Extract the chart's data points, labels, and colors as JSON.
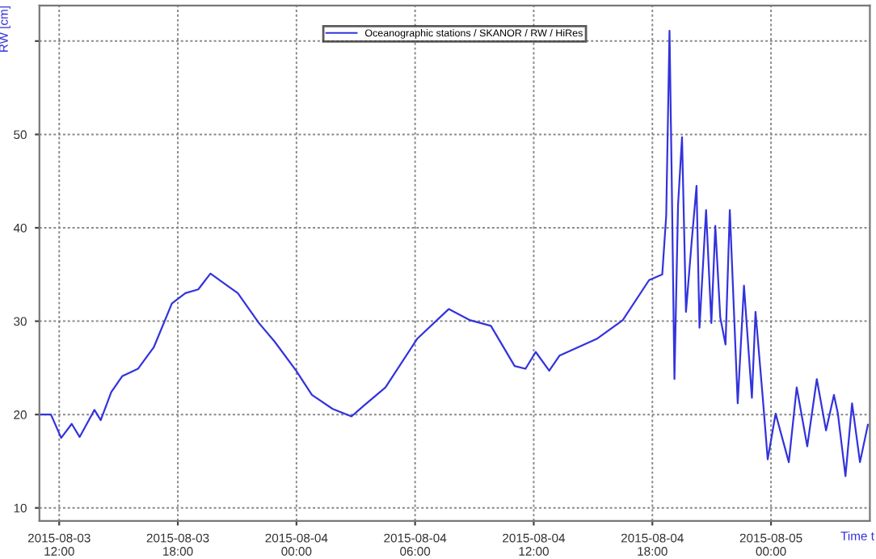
{
  "chart_data": {
    "type": "line",
    "ylabel": "RW [cm]",
    "xlabel": "Time t",
    "xlim": [
      "2015-08-03T11:00",
      "2015-08-05T05:00"
    ],
    "xticks": [
      {
        "value": "2015-08-03T12:00",
        "label": "2015-08-03\n12:00"
      },
      {
        "value": "2015-08-03T18:00",
        "label": "2015-08-03\n18:00"
      },
      {
        "value": "2015-08-04T00:00",
        "label": "2015-08-04\n00:00"
      },
      {
        "value": "2015-08-04T06:00",
        "label": "2015-08-04\n06:00"
      },
      {
        "value": "2015-08-04T12:00",
        "label": "2015-08-04\n12:00"
      },
      {
        "value": "2015-08-04T18:00",
        "label": "2015-08-04\n18:00"
      },
      {
        "value": "2015-08-05T00:00",
        "label": "2015-08-05\n00:00"
      }
    ],
    "ylim": [
      8.6,
      63.8
    ],
    "yticks": [
      10,
      20,
      30,
      40,
      50,
      {
        "value": 60,
        "label": null
      }
    ],
    "grid": true,
    "legend": "top",
    "marker": "none",
    "line_style": "solid",
    "x": [
      "2015-08-03T11:02",
      "2015-08-03T11:35",
      "2015-08-03T12:06",
      "2015-08-03T12:38",
      "2015-08-03T13:02",
      "2015-08-03T13:47",
      "2015-08-03T14:06",
      "2015-08-03T14:38",
      "2015-08-03T15:11",
      "2015-08-03T15:59",
      "2015-08-03T16:47",
      "2015-08-03T17:42",
      "2015-08-03T18:23",
      "2015-08-03T19:02",
      "2015-08-03T19:39",
      "2015-08-03T20:30",
      "2015-08-03T21:02",
      "2015-08-03T22:06",
      "2015-08-03T22:54",
      "2015-08-03T23:59",
      "2015-08-04T00:47",
      "2015-08-04T01:50",
      "2015-08-04T02:47",
      "2015-08-04T03:26",
      "2015-08-04T04:30",
      "2015-08-04T06:06",
      "2015-08-04T07:42",
      "2015-08-04T08:47",
      "2015-08-04T09:50",
      "2015-08-04T11:02",
      "2015-08-04T11:35",
      "2015-08-04T12:06",
      "2015-08-04T12:47",
      "2015-08-04T13:18",
      "2015-08-04T15:11",
      "2015-08-04T16:30",
      "2015-08-04T17:50",
      "2015-08-04T18:30",
      "2015-08-04T18:42",
      "2015-08-04T18:52",
      "2015-08-04T18:58",
      "2015-08-04T19:07",
      "2015-08-04T19:18",
      "2015-08-04T19:30",
      "2015-08-04T19:42",
      "2015-08-04T19:59",
      "2015-08-04T20:14",
      "2015-08-04T20:23",
      "2015-08-04T20:43",
      "2015-08-04T20:59",
      "2015-08-04T21:11",
      "2015-08-04T21:26",
      "2015-08-04T21:42",
      "2015-08-04T21:55",
      "2015-08-04T22:19",
      "2015-08-04T22:38",
      "2015-08-04T23:02",
      "2015-08-04T23:13",
      "2015-08-04T23:35",
      "2015-08-04T23:50",
      "2015-08-05T00:14",
      "2015-08-05T00:54",
      "2015-08-05T01:18",
      "2015-08-05T01:50",
      "2015-08-05T02:19",
      "2015-08-05T02:47",
      "2015-08-05T03:11",
      "2015-08-05T03:23",
      "2015-08-05T03:46",
      "2015-08-05T04:06",
      "2015-08-05T04:30",
      "2015-08-05T04:54"
    ],
    "series": [
      {
        "name": "Oceanographic stations / SKANOR / RW / HiRes",
        "color": "#3333dd",
        "values": [
          20.0,
          20.0,
          17.5,
          19.0,
          17.6,
          20.5,
          19.4,
          22.4,
          24.1,
          24.9,
          27.2,
          31.9,
          33.0,
          33.4,
          35.1,
          33.8,
          33.0,
          29.8,
          27.8,
          24.7,
          22.1,
          20.6,
          19.8,
          21.0,
          22.9,
          28.1,
          31.3,
          30.1,
          29.5,
          25.2,
          24.9,
          26.7,
          24.7,
          26.3,
          28.1,
          30.1,
          34.4,
          35.0,
          41.3,
          61.1,
          47.1,
          23.8,
          42.5,
          49.7,
          31.0,
          38.4,
          44.5,
          29.3,
          41.9,
          29.8,
          40.2,
          30.4,
          27.5,
          41.9,
          21.2,
          33.8,
          21.8,
          31.0,
          21.8,
          15.2,
          20.1,
          14.9,
          22.9,
          16.6,
          23.8,
          18.3,
          22.1,
          20.1,
          13.4,
          21.2,
          14.9,
          18.9
        ]
      }
    ]
  }
}
